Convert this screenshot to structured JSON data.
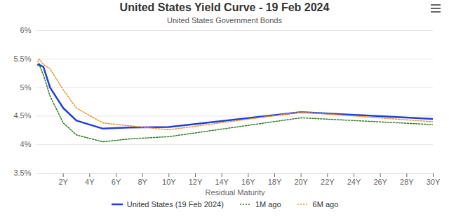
{
  "chart_data": {
    "type": "line",
    "title": "United States Yield Curve - 19 Feb 2024",
    "subtitle": "United States Government Bonds",
    "xlabel": "Residual Maturity",
    "x": [
      0.08,
      0.17,
      0.25,
      0.5,
      1,
      2,
      3,
      5,
      7,
      10,
      20,
      30
    ],
    "series": [
      {
        "name": "United States (19 Feb 2024)",
        "color": "#1f3fd6",
        "line_style": "solid",
        "values": [
          5.4,
          5.41,
          5.39,
          5.36,
          5.0,
          4.64,
          4.42,
          4.28,
          4.3,
          4.31,
          4.57,
          4.45
        ]
      },
      {
        "name": "1M ago",
        "color": "#2f7a1f",
        "line_style": "dotted",
        "values": [
          5.4,
          5.38,
          5.36,
          5.22,
          4.85,
          4.38,
          4.17,
          4.05,
          4.1,
          4.14,
          4.47,
          4.35
        ]
      },
      {
        "name": "6M ago",
        "color": "#f0902a",
        "line_style": "dotted",
        "values": [
          5.45,
          5.5,
          5.48,
          5.4,
          5.33,
          4.96,
          4.64,
          4.38,
          4.33,
          4.26,
          4.57,
          4.4
        ]
      }
    ],
    "xlim": [
      0,
      30
    ],
    "xticks": [
      {
        "value": 2,
        "label": "2Y"
      },
      {
        "value": 4,
        "label": "4Y"
      },
      {
        "value": 6,
        "label": "6Y"
      },
      {
        "value": 8,
        "label": "8Y"
      },
      {
        "value": 10,
        "label": "10Y"
      },
      {
        "value": 12,
        "label": "12Y"
      },
      {
        "value": 14,
        "label": "14Y"
      },
      {
        "value": 16,
        "label": "16Y"
      },
      {
        "value": 18,
        "label": "18Y"
      },
      {
        "value": 20,
        "label": "20Y"
      },
      {
        "value": 22,
        "label": "22Y"
      },
      {
        "value": 24,
        "label": "24Y"
      },
      {
        "value": 26,
        "label": "26Y"
      },
      {
        "value": 28,
        "label": "28Y"
      },
      {
        "value": 30,
        "label": "30Y"
      }
    ],
    "ylim": [
      3.5,
      6
    ],
    "yticks": [
      {
        "value": 3.5,
        "label": "3.5%"
      },
      {
        "value": 4,
        "label": "4%"
      },
      {
        "value": 4.5,
        "label": "4.5%"
      },
      {
        "value": 5,
        "label": "5%"
      },
      {
        "value": 5.5,
        "label": "5.5%"
      },
      {
        "value": 6,
        "label": "6%"
      }
    ],
    "grid": true,
    "legend": "bottom"
  }
}
